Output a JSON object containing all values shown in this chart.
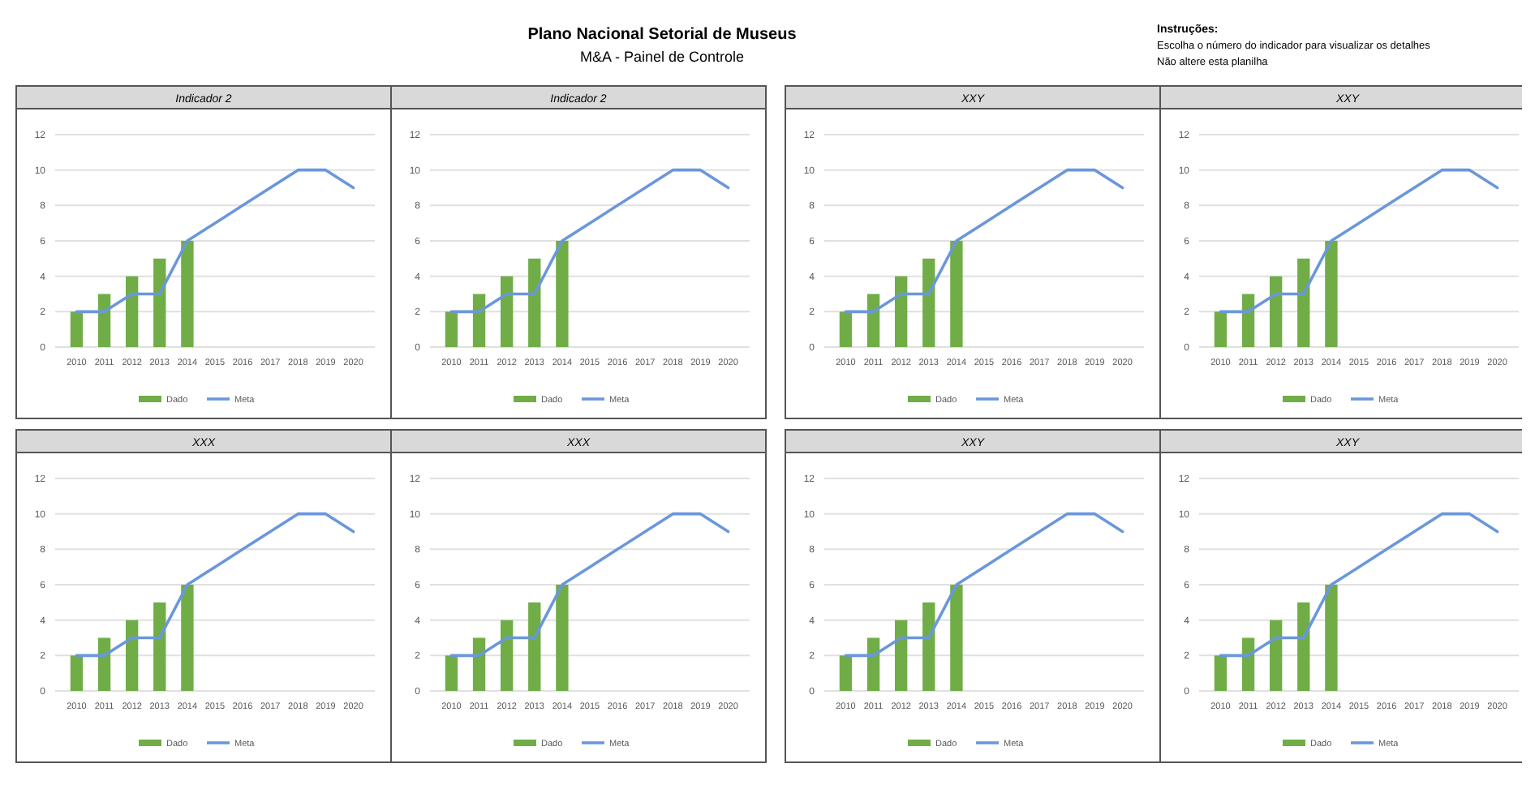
{
  "chart_data": [
    {
      "type": "other",
      "title": "Plano Nacional Setorial de Museus",
      "subtitle": "M&A - Painel de Controle",
      "annotations": [
        "Instruções:",
        "Escolha o número do indicador para visualizar os detalhes",
        "Não altere esta planilha"
      ]
    },
    {
      "type": "bar",
      "title": "Indicador 2",
      "categories": [
        "2010",
        "2011",
        "2012",
        "2013",
        "2014",
        "2015",
        "2016",
        "2017",
        "2018",
        "2019",
        "2020"
      ],
      "series": [
        {
          "name": "Dado",
          "type": "bar",
          "color": "#70ad47",
          "values": [
            2,
            3,
            4,
            5,
            6,
            null,
            null,
            null,
            null,
            null,
            null
          ]
        },
        {
          "name": "Meta",
          "type": "line",
          "color": "#6a97dc",
          "values": [
            2,
            2,
            3,
            3,
            6,
            7,
            8,
            9,
            10,
            10,
            9
          ]
        }
      ],
      "ylim": [
        0,
        12
      ],
      "yticks": [
        0,
        2,
        4,
        6,
        8,
        10,
        12
      ],
      "grid": "y",
      "legend": "bottom"
    },
    {
      "type": "bar",
      "title": "Indicador 2",
      "categories": [
        "2010",
        "2011",
        "2012",
        "2013",
        "2014",
        "2015",
        "2016",
        "2017",
        "2018",
        "2019",
        "2020"
      ],
      "series": [
        {
          "name": "Dado",
          "type": "bar",
          "color": "#70ad47",
          "values": [
            2,
            3,
            4,
            5,
            6,
            null,
            null,
            null,
            null,
            null,
            null
          ]
        },
        {
          "name": "Meta",
          "type": "line",
          "color": "#6a97dc",
          "values": [
            2,
            2,
            3,
            3,
            6,
            7,
            8,
            9,
            10,
            10,
            9
          ]
        }
      ],
      "ylim": [
        0,
        12
      ],
      "yticks": [
        0,
        2,
        4,
        6,
        8,
        10,
        12
      ],
      "grid": "y",
      "legend": "bottom"
    },
    {
      "type": "bar",
      "title": "XXY",
      "categories": [
        "2010",
        "2011",
        "2012",
        "2013",
        "2014",
        "2015",
        "2016",
        "2017",
        "2018",
        "2019",
        "2020"
      ],
      "series": [
        {
          "name": "Dado",
          "type": "bar",
          "color": "#70ad47",
          "values": [
            2,
            3,
            4,
            5,
            6,
            null,
            null,
            null,
            null,
            null,
            null
          ]
        },
        {
          "name": "Meta",
          "type": "line",
          "color": "#6a97dc",
          "values": [
            2,
            2,
            3,
            3,
            6,
            7,
            8,
            9,
            10,
            10,
            9
          ]
        }
      ],
      "ylim": [
        0,
        12
      ],
      "yticks": [
        0,
        2,
        4,
        6,
        8,
        10,
        12
      ],
      "grid": "y",
      "legend": "bottom"
    },
    {
      "type": "bar",
      "title": "XXY",
      "categories": [
        "2010",
        "2011",
        "2012",
        "2013",
        "2014",
        "2015",
        "2016",
        "2017",
        "2018",
        "2019",
        "2020"
      ],
      "series": [
        {
          "name": "Dado",
          "type": "bar",
          "color": "#70ad47",
          "values": [
            2,
            3,
            4,
            5,
            6,
            null,
            null,
            null,
            null,
            null,
            null
          ]
        },
        {
          "name": "Meta",
          "type": "line",
          "color": "#6a97dc",
          "values": [
            2,
            2,
            3,
            3,
            6,
            7,
            8,
            9,
            10,
            10,
            9
          ]
        }
      ],
      "ylim": [
        0,
        12
      ],
      "yticks": [
        0,
        2,
        4,
        6,
        8,
        10,
        12
      ],
      "grid": "y",
      "legend": "bottom"
    },
    {
      "type": "bar",
      "title": "XXX",
      "categories": [
        "2010",
        "2011",
        "2012",
        "2013",
        "2014",
        "2015",
        "2016",
        "2017",
        "2018",
        "2019",
        "2020"
      ],
      "series": [
        {
          "name": "Dado",
          "type": "bar",
          "color": "#70ad47",
          "values": [
            2,
            3,
            4,
            5,
            6,
            null,
            null,
            null,
            null,
            null,
            null
          ]
        },
        {
          "name": "Meta",
          "type": "line",
          "color": "#6a97dc",
          "values": [
            2,
            2,
            3,
            3,
            6,
            7,
            8,
            9,
            10,
            10,
            9
          ]
        }
      ],
      "ylim": [
        0,
        12
      ],
      "yticks": [
        0,
        2,
        4,
        6,
        8,
        10,
        12
      ],
      "grid": "y",
      "legend": "bottom"
    },
    {
      "type": "bar",
      "title": "XXX",
      "categories": [
        "2010",
        "2011",
        "2012",
        "2013",
        "2014",
        "2015",
        "2016",
        "2017",
        "2018",
        "2019",
        "2020"
      ],
      "series": [
        {
          "name": "Dado",
          "type": "bar",
          "color": "#70ad47",
          "values": [
            2,
            3,
            4,
            5,
            6,
            null,
            null,
            null,
            null,
            null,
            null
          ]
        },
        {
          "name": "Meta",
          "type": "line",
          "color": "#6a97dc",
          "values": [
            2,
            2,
            3,
            3,
            6,
            7,
            8,
            9,
            10,
            10,
            9
          ]
        }
      ],
      "ylim": [
        0,
        12
      ],
      "yticks": [
        0,
        2,
        4,
        6,
        8,
        10,
        12
      ],
      "grid": "y",
      "legend": "bottom"
    },
    {
      "type": "bar",
      "title": "XXY",
      "categories": [
        "2010",
        "2011",
        "2012",
        "2013",
        "2014",
        "2015",
        "2016",
        "2017",
        "2018",
        "2019",
        "2020"
      ],
      "series": [
        {
          "name": "Dado",
          "type": "bar",
          "color": "#70ad47",
          "values": [
            2,
            3,
            4,
            5,
            6,
            null,
            null,
            null,
            null,
            null,
            null
          ]
        },
        {
          "name": "Meta",
          "type": "line",
          "color": "#6a97dc",
          "values": [
            2,
            2,
            3,
            3,
            6,
            7,
            8,
            9,
            10,
            10,
            9
          ]
        }
      ],
      "ylim": [
        0,
        12
      ],
      "yticks": [
        0,
        2,
        4,
        6,
        8,
        10,
        12
      ],
      "grid": "y",
      "legend": "bottom"
    },
    {
      "type": "bar",
      "title": "XXY",
      "categories": [
        "2010",
        "2011",
        "2012",
        "2013",
        "2014",
        "2015",
        "2016",
        "2017",
        "2018",
        "2019",
        "2020"
      ],
      "series": [
        {
          "name": "Dado",
          "type": "bar",
          "color": "#70ad47",
          "values": [
            2,
            3,
            4,
            5,
            6,
            null,
            null,
            null,
            null,
            null,
            null
          ]
        },
        {
          "name": "Meta",
          "type": "line",
          "color": "#6a97dc",
          "values": [
            2,
            2,
            3,
            3,
            6,
            7,
            8,
            9,
            10,
            10,
            9
          ]
        }
      ],
      "ylim": [
        0,
        12
      ],
      "yticks": [
        0,
        2,
        4,
        6,
        8,
        10,
        12
      ],
      "grid": "y",
      "legend": "bottom"
    }
  ]
}
